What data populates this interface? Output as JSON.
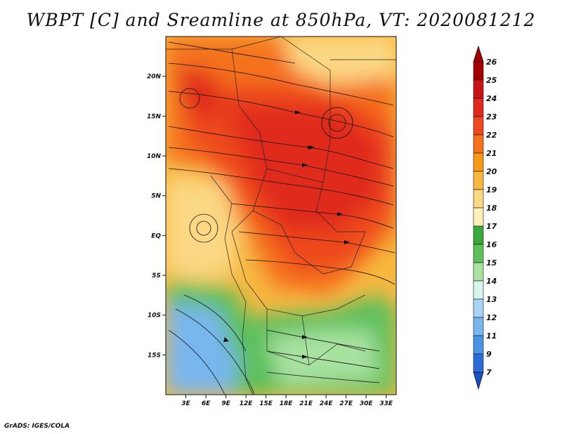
{
  "title": "WBPT [C] and Sreamline at 850hPa, VT: 2020081212",
  "footer": "GrADS: IGES/COLA",
  "axes": {
    "lat_ticks": [
      {
        "label": "20N",
        "value": 20
      },
      {
        "label": "15N",
        "value": 15
      },
      {
        "label": "10N",
        "value": 10
      },
      {
        "label": "5N",
        "value": 5
      },
      {
        "label": "EQ",
        "value": 0
      },
      {
        "label": "5S",
        "value": -5
      },
      {
        "label": "10S",
        "value": -10
      },
      {
        "label": "15S",
        "value": -15
      }
    ],
    "lon_ticks": [
      {
        "label": "3E",
        "value": 3
      },
      {
        "label": "6E",
        "value": 6
      },
      {
        "label": "9E",
        "value": 9
      },
      {
        "label": "12E",
        "value": 12
      },
      {
        "label": "15E",
        "value": 15
      },
      {
        "label": "18E",
        "value": 18
      },
      {
        "label": "21E",
        "value": 21
      },
      {
        "label": "24E",
        "value": 24
      },
      {
        "label": "27E",
        "value": 27
      },
      {
        "label": "30E",
        "value": 30
      },
      {
        "label": "33E",
        "value": 33
      }
    ],
    "lon_range": [
      0,
      34.5
    ],
    "lat_range": [
      -20,
      25
    ]
  },
  "colorbar": {
    "levels": [
      "26",
      "25",
      "24",
      "23",
      "22",
      "21",
      "20",
      "19",
      "18",
      "17",
      "16",
      "15",
      "14",
      "13",
      "12",
      "11",
      "9",
      "7"
    ],
    "colors": [
      "#a50000",
      "#c81414",
      "#e02a1e",
      "#ee4a1e",
      "#f5721a",
      "#f59a14",
      "#f7b840",
      "#fbd884",
      "#fdf0b8",
      "#3aa83a",
      "#5cc05c",
      "#a8e2a0",
      "#d8f4ec",
      "#a8d4f5",
      "#78b6ee",
      "#4a92e4",
      "#2a6cd8",
      "#1850c0"
    ]
  },
  "legend_colors": {
    "hot": "#e02a1e",
    "warm": "#f5721a",
    "mild": "#fbd884",
    "green": "#5cc05c",
    "cool": "#78b6ee"
  }
}
